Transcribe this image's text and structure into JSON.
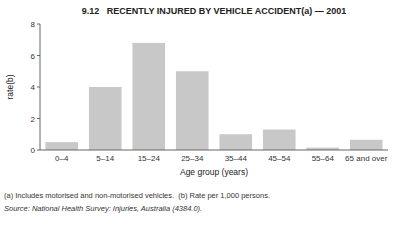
{
  "chart_data": {
    "type": "bar",
    "title": "9.12   RECENTLY INJURED BY VEHICLE ACCIDENT(a) — 2001",
    "categories": [
      "0–4",
      "5–14",
      "15–24",
      "25–34",
      "35–44",
      "45–54",
      "55–64",
      "65 and over"
    ],
    "values": [
      0.5,
      4.0,
      6.8,
      5.0,
      1.0,
      1.3,
      0.15,
      0.65
    ],
    "color": "#c8c8c8",
    "xlabel": "Age group (years)",
    "ylabel": "rate(b)",
    "ylim": [
      0,
      8
    ],
    "yticks": [
      0,
      2,
      4,
      6,
      8
    ],
    "grid": true,
    "annotations": [
      "(a) Includes motorised and non-motorised vehicles.  (b) Rate per 1,000 persons.",
      "Source: National Health Survey: Injuries, Australia (4384.0)."
    ]
  }
}
